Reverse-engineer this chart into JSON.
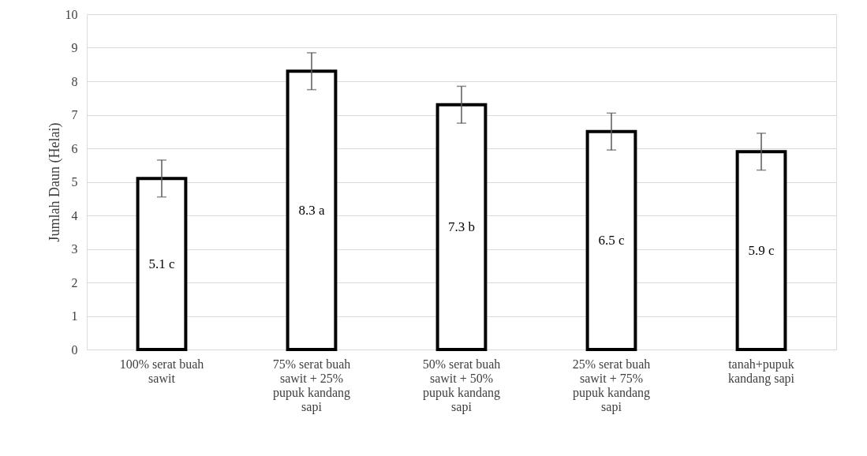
{
  "chart_data": {
    "type": "bar",
    "ylabel": "Jumlah Daun (Helai)",
    "categories": [
      "100% serat buah sawit",
      "75% serat buah sawit + 25% pupuk kandang sapi",
      "50% serat buah sawit + 50% pupuk kandang sapi",
      "25% serat buah sawit + 75% pupuk kandang sapi",
      "tanah+pupuk kandang sapi"
    ],
    "values": [
      5.1,
      8.3,
      7.3,
      6.5,
      5.9
    ],
    "errors": [
      0.55,
      0.55,
      0.55,
      0.55,
      0.55
    ],
    "value_labels": [
      "5.1 c",
      "8.3 a",
      "7.3 b",
      "6.5 c",
      "5.9 c"
    ],
    "color": "#ffffff",
    "ylim": [
      0,
      10
    ],
    "yticks": [
      0,
      1,
      2,
      3,
      4,
      5,
      6,
      7,
      8,
      9,
      10
    ],
    "grid": "y"
  }
}
